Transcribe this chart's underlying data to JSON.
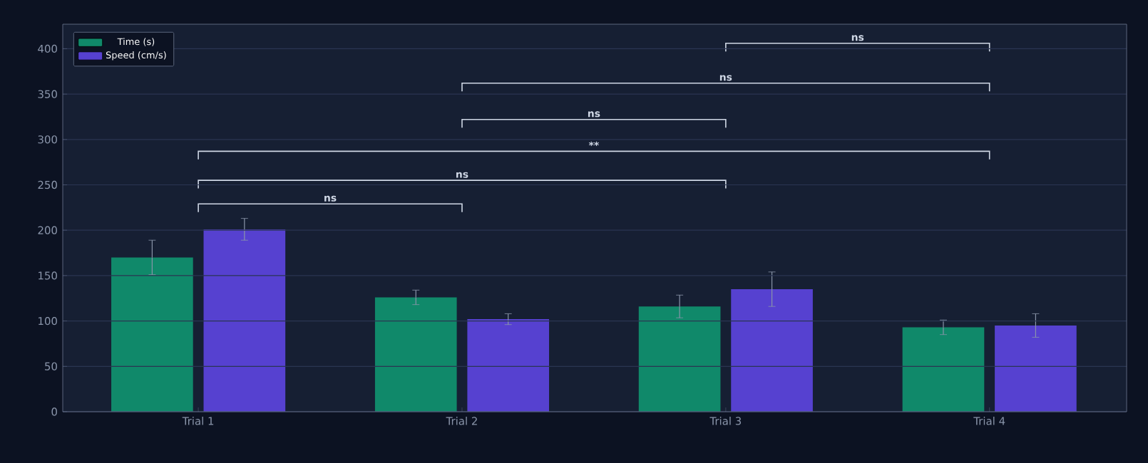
{
  "chart_data": {
    "type": "bar",
    "categories": [
      "Trial 1",
      "Trial 2",
      "Trial 3",
      "Trial 4"
    ],
    "series": [
      {
        "name": "Time (s)",
        "color": "#10896a",
        "values": [
          170,
          126,
          116,
          93
        ],
        "errors": [
          19,
          8,
          12.5,
          8
        ]
      },
      {
        "name": "Speed (cm/s)",
        "color": "#5641d0",
        "values": [
          201,
          102,
          135,
          95
        ],
        "errors": [
          12,
          6,
          19,
          13
        ]
      }
    ],
    "ylim": [
      0,
      427
    ],
    "yticks": [
      0,
      50,
      100,
      150,
      200,
      250,
      300,
      350,
      400
    ],
    "grid": "y",
    "legend": "top left",
    "annotations": [
      "ns",
      "ns",
      "**",
      "ns",
      "ns",
      "ns"
    ]
  }
}
